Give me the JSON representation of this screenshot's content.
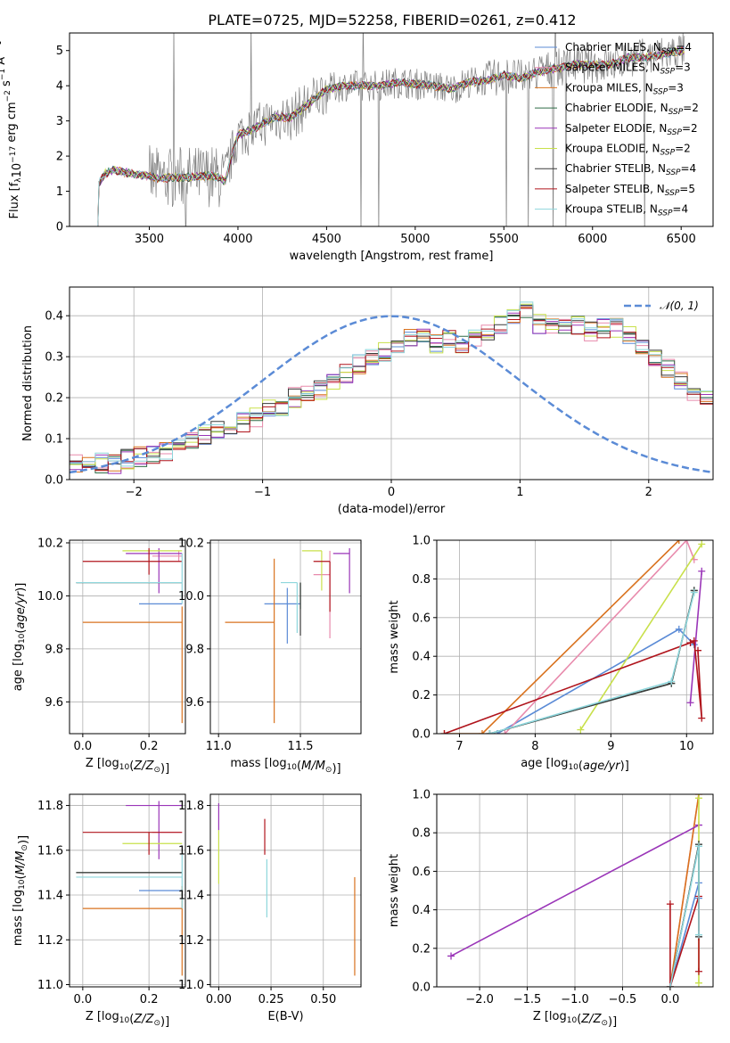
{
  "figure": {
    "title": "PLATE=0725, MJD=52258, FIBERID=0261, z=0.412"
  },
  "colors": {
    "Chabrier MILES": "#5b8bd6",
    "Salpeter MILES": "#e88aac",
    "Kroupa MILES": "#d9721e",
    "Chabrier ELODIE": "#2f6b46",
    "Salpeter ELODIE": "#9a35b8",
    "Kroupa ELODIE": "#c8e04a",
    "Chabrier STELIB": "#3a3a3a",
    "Salpeter STELIB": "#b0141c",
    "Kroupa STELIB": "#8ed6dc",
    "data": "#808080",
    "normal": "#5b8bd6"
  },
  "chart_data": [
    {
      "id": "spectrum",
      "type": "line",
      "title": "PLATE=0725, MJD=52258, FIBERID=0261, z=0.412",
      "xlabel": "wavelength [Angstrom, rest frame]",
      "ylabel_text": "Flux [f",
      "xlim": [
        3050,
        6680
      ],
      "ylim": [
        0,
        5.5
      ],
      "xticks": [
        3500,
        4000,
        4500,
        5000,
        5500,
        6000,
        6500
      ],
      "yticks": [
        0,
        1,
        2,
        3,
        4,
        5
      ],
      "legend_position": "top-right",
      "legend": [
        {
          "model": "Chabrier MILES",
          "nssp": 4
        },
        {
          "model": "Salpeter MILES",
          "nssp": 3
        },
        {
          "model": "Kroupa MILES",
          "nssp": 3
        },
        {
          "model": "Chabrier ELODIE",
          "nssp": 2
        },
        {
          "model": "Salpeter ELODIE",
          "nssp": 2
        },
        {
          "model": "Kroupa ELODIE",
          "nssp": 2
        },
        {
          "model": "Chabrier STELIB",
          "nssp": 4
        },
        {
          "model": "Salpeter STELIB",
          "nssp": 5
        },
        {
          "model": "Kroupa STELIB",
          "nssp": 4
        }
      ],
      "continuum": [
        [
          3210,
          0
        ],
        [
          3215,
          1.2
        ],
        [
          3250,
          1.5
        ],
        [
          3300,
          1.6
        ],
        [
          3400,
          1.5
        ],
        [
          3480,
          1.45
        ],
        [
          3550,
          1.35
        ],
        [
          3650,
          1.4
        ],
        [
          3750,
          1.4
        ],
        [
          3850,
          1.45
        ],
        [
          3930,
          1.3
        ],
        [
          3970,
          2.1
        ],
        [
          4000,
          2.6
        ],
        [
          4100,
          2.8
        ],
        [
          4200,
          3.1
        ],
        [
          4300,
          3.1
        ],
        [
          4400,
          3.5
        ],
        [
          4500,
          3.9
        ],
        [
          4600,
          4.0
        ],
        [
          4700,
          4.0
        ],
        [
          4800,
          4.0
        ],
        [
          4900,
          4.1
        ],
        [
          5000,
          4.05
        ],
        [
          5100,
          4.0
        ],
        [
          5200,
          3.9
        ],
        [
          5300,
          4.1
        ],
        [
          5400,
          4.15
        ],
        [
          5500,
          4.3
        ],
        [
          5600,
          4.2
        ],
        [
          5700,
          4.4
        ],
        [
          5800,
          4.5
        ],
        [
          5900,
          4.6
        ],
        [
          6000,
          4.6
        ],
        [
          6100,
          4.6
        ],
        [
          6200,
          4.8
        ],
        [
          6300,
          4.8
        ],
        [
          6400,
          4.9
        ],
        [
          6500,
          5.0
        ]
      ]
    },
    {
      "id": "residuals",
      "type": "histogram",
      "xlabel": "(data-model)/error",
      "ylabel": "Normed distribution",
      "xlim": [
        -2.5,
        2.5
      ],
      "ylim": [
        0,
        0.47
      ],
      "xticks": [
        -2,
        -1,
        0,
        1,
        2
      ],
      "yticks": [
        0.0,
        0.1,
        0.2,
        0.3,
        0.4
      ],
      "legend_position": "top-right",
      "reference_curve": "N(0,1)",
      "bin_width": 0.1,
      "bins_start": -2.5,
      "base_profile": [
        0.04,
        0.04,
        0.04,
        0.04,
        0.05,
        0.055,
        0.06,
        0.07,
        0.09,
        0.1,
        0.11,
        0.12,
        0.13,
        0.14,
        0.15,
        0.17,
        0.18,
        0.2,
        0.21,
        0.22,
        0.24,
        0.26,
        0.28,
        0.3,
        0.31,
        0.33,
        0.35,
        0.35,
        0.33,
        0.34,
        0.33,
        0.35,
        0.36,
        0.38,
        0.4,
        0.41,
        0.38,
        0.38,
        0.37,
        0.38,
        0.36,
        0.37,
        0.37,
        0.35,
        0.33,
        0.3,
        0.27,
        0.24,
        0.21,
        0.2,
        0.19,
        0.18,
        0.17,
        0.15,
        0.14,
        0.12,
        0.1,
        0.09,
        0.08,
        0.07,
        0.07,
        0.07,
        0.06,
        0.06,
        0.06,
        0.06,
        0.06,
        0.05,
        0.06,
        0.05,
        0.05,
        0.05,
        0.05,
        0.05,
        0.04,
        0.04,
        0.04,
        0.04,
        0.04,
        0.04,
        0.04,
        0.04,
        0.04,
        0.04,
        0.04,
        0.04,
        0.04,
        0.04,
        0.04,
        0.04,
        0.04,
        0.04,
        0.04,
        0.04,
        0.04,
        0.04,
        0.04,
        0.04,
        0.04,
        0.04
      ]
    },
    {
      "id": "age-vs-Z",
      "type": "errorbar",
      "xlabel": "Z [log10(Z/Zsun)]",
      "ylabel": "age [log10(age/yr)]",
      "xlim": [
        -0.04,
        0.31
      ],
      "ylim": [
        9.48,
        10.21
      ],
      "xticks": [
        0.0,
        0.2
      ],
      "yticks": [
        9.6,
        9.8,
        10.0,
        10.2
      ],
      "points": [
        {
          "model": "Chabrier MILES",
          "x": 0.29,
          "y": 9.97,
          "xerr": [
            0.12,
            0.01
          ],
          "yerr": [
            0.0,
            0.0
          ]
        },
        {
          "model": "Salpeter MILES",
          "x": 0.29,
          "y": 10.15,
          "xerr": [
            0.08,
            0.01
          ],
          "yerr": [
            0.02,
            0.02
          ]
        },
        {
          "model": "Kroupa MILES",
          "x": 0.3,
          "y": 9.9,
          "xerr": [
            0.3,
            0.0
          ],
          "yerr": [
            0.38,
            0.06
          ]
        },
        {
          "model": "Chabrier ELODIE",
          "x": 0.3,
          "y": 10.05,
          "xerr": [
            0.32,
            0.0
          ],
          "yerr": [
            0.0,
            0.0
          ]
        },
        {
          "model": "Salpeter ELODIE",
          "x": 0.23,
          "y": 10.16,
          "xerr": [
            0.1,
            0.07
          ],
          "yerr": [
            0.15,
            0.02
          ]
        },
        {
          "model": "Kroupa ELODIE",
          "x": 0.22,
          "y": 10.17,
          "xerr": [
            0.1,
            0.08
          ],
          "yerr": [
            0.0,
            0.0
          ]
        },
        {
          "model": "Chabrier STELIB",
          "x": 0.3,
          "y": 10.05,
          "xerr": [
            0.32,
            0.0
          ],
          "yerr": [
            0.0,
            0.0
          ]
        },
        {
          "model": "Salpeter STELIB",
          "x": 0.2,
          "y": 10.13,
          "xerr": [
            0.2,
            0.1
          ],
          "yerr": [
            0.05,
            0.05
          ]
        },
        {
          "model": "Kroupa STELIB",
          "x": 0.3,
          "y": 10.05,
          "xerr": [
            0.32,
            0.0
          ],
          "yerr": [
            0.08,
            0.11
          ]
        }
      ]
    },
    {
      "id": "age-vs-mass",
      "type": "errorbar",
      "xlabel": "mass [log10(M/Msun)]",
      "ylabel": "",
      "xlim": [
        10.95,
        11.87
      ],
      "ylim": [
        9.48,
        10.21
      ],
      "xticks": [
        11.0,
        11.5
      ],
      "yticks": [
        9.6,
        9.8,
        10.0,
        10.2
      ],
      "points": [
        {
          "model": "Chabrier MILES",
          "x": 11.42,
          "y": 9.97,
          "xerr": [
            0.14,
            0.08
          ],
          "yerr": [
            0.15,
            0.06
          ]
        },
        {
          "model": "Salpeter MILES",
          "x": 11.68,
          "y": 10.08,
          "xerr": [
            0.1,
            0.0
          ],
          "yerr": [
            0.24,
            0.09
          ]
        },
        {
          "model": "Kroupa MILES",
          "x": 11.34,
          "y": 9.9,
          "xerr": [
            0.3,
            0.0
          ],
          "yerr": [
            0.38,
            0.24
          ]
        },
        {
          "model": "Chabrier ELODIE",
          "x": 11.5,
          "y": 10.05,
          "xerr": [
            0.0,
            0.0
          ],
          "yerr": [
            0.1,
            0.0
          ]
        },
        {
          "model": "Salpeter ELODIE",
          "x": 11.8,
          "y": 10.16,
          "xerr": [
            0.1,
            0.0
          ],
          "yerr": [
            0.15,
            0.02
          ]
        },
        {
          "model": "Kroupa ELODIE",
          "x": 11.63,
          "y": 10.17,
          "xerr": [
            0.12,
            0.0
          ],
          "yerr": [
            0.15,
            0.0
          ]
        },
        {
          "model": "Chabrier STELIB",
          "x": 11.5,
          "y": 10.05,
          "xerr": [
            0.0,
            0.0
          ],
          "yerr": [
            0.2,
            0.0
          ]
        },
        {
          "model": "Salpeter STELIB",
          "x": 11.68,
          "y": 10.13,
          "xerr": [
            0.1,
            0.0
          ],
          "yerr": [
            0.19,
            0.0
          ]
        },
        {
          "model": "Kroupa STELIB",
          "x": 11.48,
          "y": 10.05,
          "xerr": [
            0.1,
            0.0
          ],
          "yerr": [
            0.19,
            0.0
          ]
        }
      ]
    },
    {
      "id": "weight-vs-age",
      "type": "line",
      "xlabel": "age [log10(age/yr)]",
      "ylabel": "mass weight",
      "xlim": [
        6.7,
        10.35
      ],
      "ylim": [
        0,
        1
      ],
      "xticks": [
        7,
        8,
        9,
        10
      ],
      "yticks": [
        0.0,
        0.2,
        0.4,
        0.6,
        0.8,
        1.0
      ],
      "series": [
        {
          "model": "Chabrier MILES",
          "x": [
            7.5,
            9.9,
            10.1
          ],
          "y": [
            0.0,
            0.54,
            0.46
          ]
        },
        {
          "model": "Salpeter MILES",
          "x": [
            7.6,
            10.0,
            10.1
          ],
          "y": [
            0.0,
            1.0,
            0.9
          ]
        },
        {
          "model": "Kroupa MILES",
          "x": [
            6.8,
            7.3,
            9.9
          ],
          "y": [
            0.0,
            0.0,
            1.0
          ]
        },
        {
          "model": "Chabrier ELODIE",
          "x": [
            7.4,
            9.8,
            10.1
          ],
          "y": [
            0.0,
            0.26,
            0.74
          ]
        },
        {
          "model": "Salpeter ELODIE",
          "x": [
            10.05,
            10.2
          ],
          "y": [
            0.16,
            0.84
          ]
        },
        {
          "model": "Kroupa ELODIE",
          "x": [
            8.6,
            10.2
          ],
          "y": [
            0.02,
            0.98
          ]
        },
        {
          "model": "Chabrier STELIB",
          "x": [
            7.4,
            9.8,
            10.1
          ],
          "y": [
            0.0,
            0.26,
            0.74
          ]
        },
        {
          "model": "Salpeter STELIB",
          "x": [
            6.8,
            10.05,
            10.1,
            10.2,
            10.15
          ],
          "y": [
            0.0,
            0.47,
            0.48,
            0.08,
            0.43
          ]
        },
        {
          "model": "Kroupa STELIB",
          "x": [
            7.4,
            9.8,
            10.1
          ],
          "y": [
            0.0,
            0.27,
            0.73
          ]
        }
      ]
    },
    {
      "id": "mass-vs-Z",
      "type": "errorbar",
      "xlabel": "Z [log10(Z/Zsun)]",
      "ylabel": "mass [log10(M/Msun)]",
      "xlim": [
        -0.04,
        0.31
      ],
      "ylim": [
        10.99,
        11.85
      ],
      "xticks": [
        0.0,
        0.2
      ],
      "yticks": [
        11.0,
        11.2,
        11.4,
        11.6,
        11.8
      ],
      "points": [
        {
          "model": "Chabrier MILES",
          "x": 0.29,
          "y": 11.42,
          "xerr": [
            0.12,
            0.01
          ],
          "yerr": [
            0.0,
            0.0
          ]
        },
        {
          "model": "Salpeter MILES",
          "x": 0.29,
          "y": 11.68,
          "xerr": [
            0.08,
            0.01
          ],
          "yerr": [
            0.0,
            0.0
          ]
        },
        {
          "model": "Kroupa MILES",
          "x": 0.3,
          "y": 11.34,
          "xerr": [
            0.3,
            0.0
          ],
          "yerr": [
            0.3,
            0.1
          ]
        },
        {
          "model": "Chabrier ELODIE",
          "x": 0.3,
          "y": 11.5,
          "xerr": [
            0.32,
            0.0
          ],
          "yerr": [
            0.0,
            0.0
          ]
        },
        {
          "model": "Salpeter ELODIE",
          "x": 0.23,
          "y": 11.8,
          "xerr": [
            0.1,
            0.07
          ],
          "yerr": [
            0.24,
            0.02
          ]
        },
        {
          "model": "Kroupa ELODIE",
          "x": 0.22,
          "y": 11.63,
          "xerr": [
            0.1,
            0.08
          ],
          "yerr": [
            0.0,
            0.0
          ]
        },
        {
          "model": "Chabrier STELIB",
          "x": 0.3,
          "y": 11.5,
          "xerr": [
            0.32,
            0.0
          ],
          "yerr": [
            0.0,
            0.0
          ]
        },
        {
          "model": "Salpeter STELIB",
          "x": 0.2,
          "y": 11.68,
          "xerr": [
            0.2,
            0.1
          ],
          "yerr": [
            0.1,
            0.0
          ]
        },
        {
          "model": "Kroupa STELIB",
          "x": 0.3,
          "y": 11.48,
          "xerr": [
            0.32,
            0.0
          ],
          "yerr": [
            0.14,
            0.1
          ]
        }
      ]
    },
    {
      "id": "mass-vs-ebv",
      "type": "errorbar",
      "xlabel": "E(B-V)",
      "ylabel": "",
      "xlim": [
        -0.04,
        0.68
      ],
      "ylim": [
        10.99,
        11.85
      ],
      "xticks": [
        0.0,
        0.25,
        0.5
      ],
      "yticks": [
        11.0,
        11.2,
        11.4,
        11.6,
        11.8
      ],
      "points": [
        {
          "model": "Kroupa MILES",
          "x": 0.65,
          "y": 11.34,
          "xerr": [
            0.0,
            0.0
          ],
          "yerr": [
            0.3,
            0.14
          ]
        },
        {
          "model": "Salpeter ELODIE",
          "x": 0.0,
          "y": 11.76,
          "xerr": [
            0.0,
            0.0
          ],
          "yerr": [
            0.07,
            0.05
          ]
        },
        {
          "model": "Kroupa ELODIE",
          "x": 0.0,
          "y": 11.55,
          "xerr": [
            0.0,
            0.0
          ],
          "yerr": [
            0.1,
            0.14
          ]
        },
        {
          "model": "Salpeter STELIB",
          "x": 0.22,
          "y": 11.65,
          "xerr": [
            0.0,
            0.0
          ],
          "yerr": [
            0.07,
            0.09
          ]
        },
        {
          "model": "Kroupa STELIB",
          "x": 0.23,
          "y": 11.42,
          "xerr": [
            0.0,
            0.0
          ],
          "yerr": [
            0.12,
            0.14
          ]
        }
      ]
    },
    {
      "id": "weight-vs-Z",
      "type": "line",
      "xlabel": "Z [log10(Z/Zsun)]",
      "ylabel": "mass weight",
      "xlim": [
        -2.45,
        0.45
      ],
      "ylim": [
        0,
        1
      ],
      "xticks": [
        -2.0,
        -1.5,
        -1.0,
        -0.5,
        0.0
      ],
      "yticks": [
        0.0,
        0.2,
        0.4,
        0.6,
        0.8,
        1.0
      ],
      "series": [
        {
          "model": "Chabrier MILES",
          "x": [
            0.0,
            0.3,
            0.3
          ],
          "y": [
            0.0,
            0.54,
            0.46
          ]
        },
        {
          "model": "Salpeter MILES",
          "x": [
            0.0,
            0.3
          ],
          "y": [
            0.0,
            1.0
          ]
        },
        {
          "model": "Kroupa MILES",
          "x": [
            0.0,
            0.3
          ],
          "y": [
            0.0,
            1.0
          ]
        },
        {
          "model": "Chabrier ELODIE",
          "x": [
            0.0,
            0.3,
            0.3
          ],
          "y": [
            0.0,
            0.74,
            0.26
          ]
        },
        {
          "model": "Salpeter ELODIE",
          "x": [
            -2.3,
            0.3
          ],
          "y": [
            0.16,
            0.84
          ]
        },
        {
          "model": "Kroupa ELODIE",
          "x": [
            0.3,
            0.3
          ],
          "y": [
            0.02,
            0.98
          ]
        },
        {
          "model": "Chabrier STELIB",
          "x": [
            0.0,
            0.3,
            0.3
          ],
          "y": [
            0.0,
            0.74,
            0.26
          ]
        },
        {
          "model": "Salpeter STELIB",
          "x": [
            0.0,
            0.0,
            0.3,
            0.3
          ],
          "y": [
            0.43,
            0.0,
            0.47,
            0.08
          ]
        },
        {
          "model": "Kroupa STELIB",
          "x": [
            0.0,
            0.3,
            0.3
          ],
          "y": [
            0.0,
            0.73,
            0.27
          ]
        }
      ]
    }
  ]
}
